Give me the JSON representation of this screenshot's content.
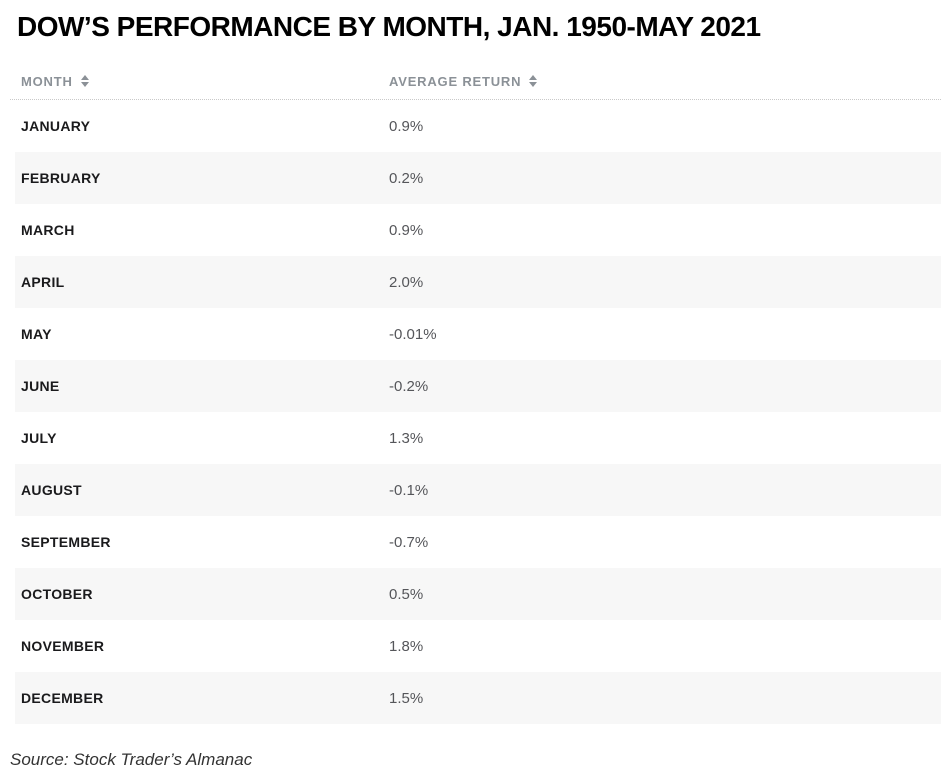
{
  "title": "DOW’S PERFORMANCE BY MONTH, JAN. 1950-MAY 2021",
  "table": {
    "columns": {
      "month_label": "MONTH",
      "return_label": "AVERAGE RETURN"
    },
    "rows": [
      {
        "month": "JANUARY",
        "avg_return": "0.9%"
      },
      {
        "month": "FEBRUARY",
        "avg_return": "0.2%"
      },
      {
        "month": "MARCH",
        "avg_return": "0.9%"
      },
      {
        "month": "APRIL",
        "avg_return": "2.0%"
      },
      {
        "month": "MAY",
        "avg_return": "-0.01%"
      },
      {
        "month": "JUNE",
        "avg_return": "-0.2%"
      },
      {
        "month": "JULY",
        "avg_return": "1.3%"
      },
      {
        "month": "AUGUST",
        "avg_return": "-0.1%"
      },
      {
        "month": "SEPTEMBER",
        "avg_return": "-0.7%"
      },
      {
        "month": "OCTOBER",
        "avg_return": "0.5%"
      },
      {
        "month": "NOVEMBER",
        "avg_return": "1.8%"
      },
      {
        "month": "DECEMBER",
        "avg_return": "1.5%"
      }
    ]
  },
  "source": "Source: Stock Trader’s Almanac",
  "colors": {
    "title_text": "#000000",
    "header_text": "#8b9197",
    "month_text": "#1a1a1c",
    "value_text": "#55565a",
    "stripe_bg": "#f7f7f7",
    "dotted_rule": "#c9c9c9"
  },
  "chart_data": {
    "type": "table",
    "title": "DOW’S PERFORMANCE BY MONTH, JAN. 1950-MAY 2021",
    "columns": [
      "MONTH",
      "AVERAGE RETURN"
    ],
    "categories": [
      "JANUARY",
      "FEBRUARY",
      "MARCH",
      "APRIL",
      "MAY",
      "JUNE",
      "JULY",
      "AUGUST",
      "SEPTEMBER",
      "OCTOBER",
      "NOVEMBER",
      "DECEMBER"
    ],
    "values": [
      0.9,
      0.2,
      0.9,
      2.0,
      -0.01,
      -0.2,
      1.3,
      -0.1,
      -0.7,
      0.5,
      1.8,
      1.5
    ],
    "unit": "%",
    "source": "Source: Stock Trader’s Almanac"
  }
}
